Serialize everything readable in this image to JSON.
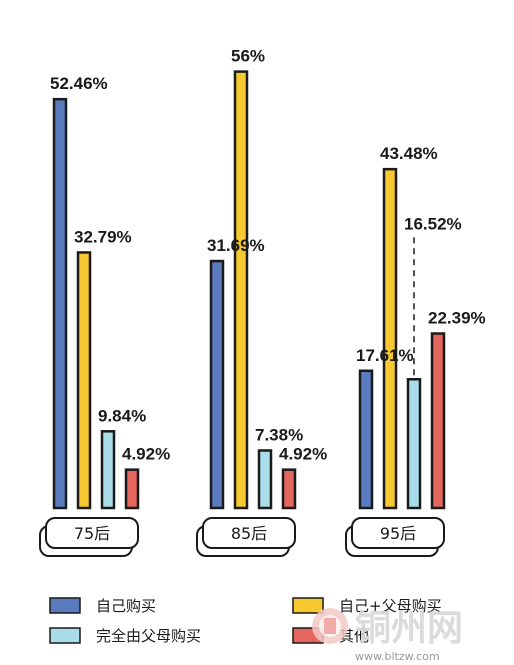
{
  "chart_data": {
    "type": "bar",
    "categories": [
      "75后",
      "85后",
      "95后"
    ],
    "series": [
      {
        "name": "自己购买",
        "color": "#5a7bbd",
        "values": [
          52.46,
          31.69,
          17.61
        ],
        "labels": [
          "52.46%",
          "31.69%",
          "17.61%"
        ]
      },
      {
        "name": "自己+父母购买",
        "color": "#f7c930",
        "values": [
          32.79,
          56,
          43.48
        ],
        "labels": [
          "32.79%",
          "56%",
          "43.48%"
        ]
      },
      {
        "name": "完全由父母购买",
        "color": "#a9dde9",
        "values": [
          9.84,
          7.38,
          16.52
        ],
        "labels": [
          "9.84%",
          "7.38%",
          "16.52%"
        ]
      },
      {
        "name": "其他",
        "color": "#e5655f",
        "values": [
          4.92,
          4.92,
          22.39
        ],
        "labels": [
          "4.92%",
          "4.92%",
          "22.39%"
        ]
      }
    ],
    "ylim": [
      0,
      58
    ],
    "legend_position": "bottom",
    "grid": false
  },
  "watermark": {
    "text": "铜州网",
    "url": "www.bltzw.com"
  }
}
